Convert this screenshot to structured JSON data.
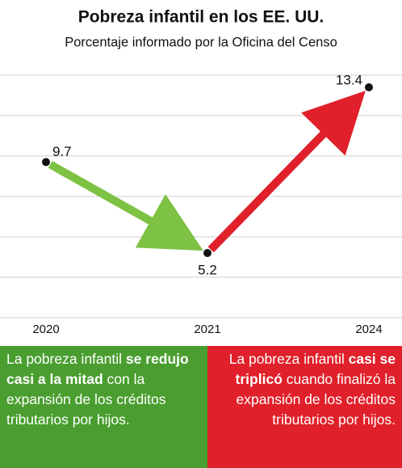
{
  "chart_data": {
    "type": "line",
    "title": "Pobreza infantil en los EE. UU.",
    "subtitle": "Porcentaje informado por la Oficina del Censo",
    "categories": [
      "2020",
      "2021",
      "2024"
    ],
    "values": [
      9.7,
      5.2,
      13.4
    ],
    "color": "#111111",
    "arrow_colors": [
      "#7dc242",
      "#e0202a"
    ],
    "ylim": [
      2,
      16
    ],
    "yticks": [
      2,
      4,
      6,
      8,
      10,
      12,
      14
    ],
    "grid": true
  },
  "notes": [
    {
      "before": "La pobreza infantil ",
      "bold": "se redujo casi a la mitad",
      "after": " con la expansión de los créditos tributarios por hijos.",
      "color": "#4a9e2f",
      "align": "left"
    },
    {
      "before": "La pobreza infantil ",
      "bold": "casi se triplicó",
      "after": " cuando finalizó la expansión de los créditos tributarios por hijos.",
      "color": "#e0202a",
      "align": "right"
    }
  ]
}
